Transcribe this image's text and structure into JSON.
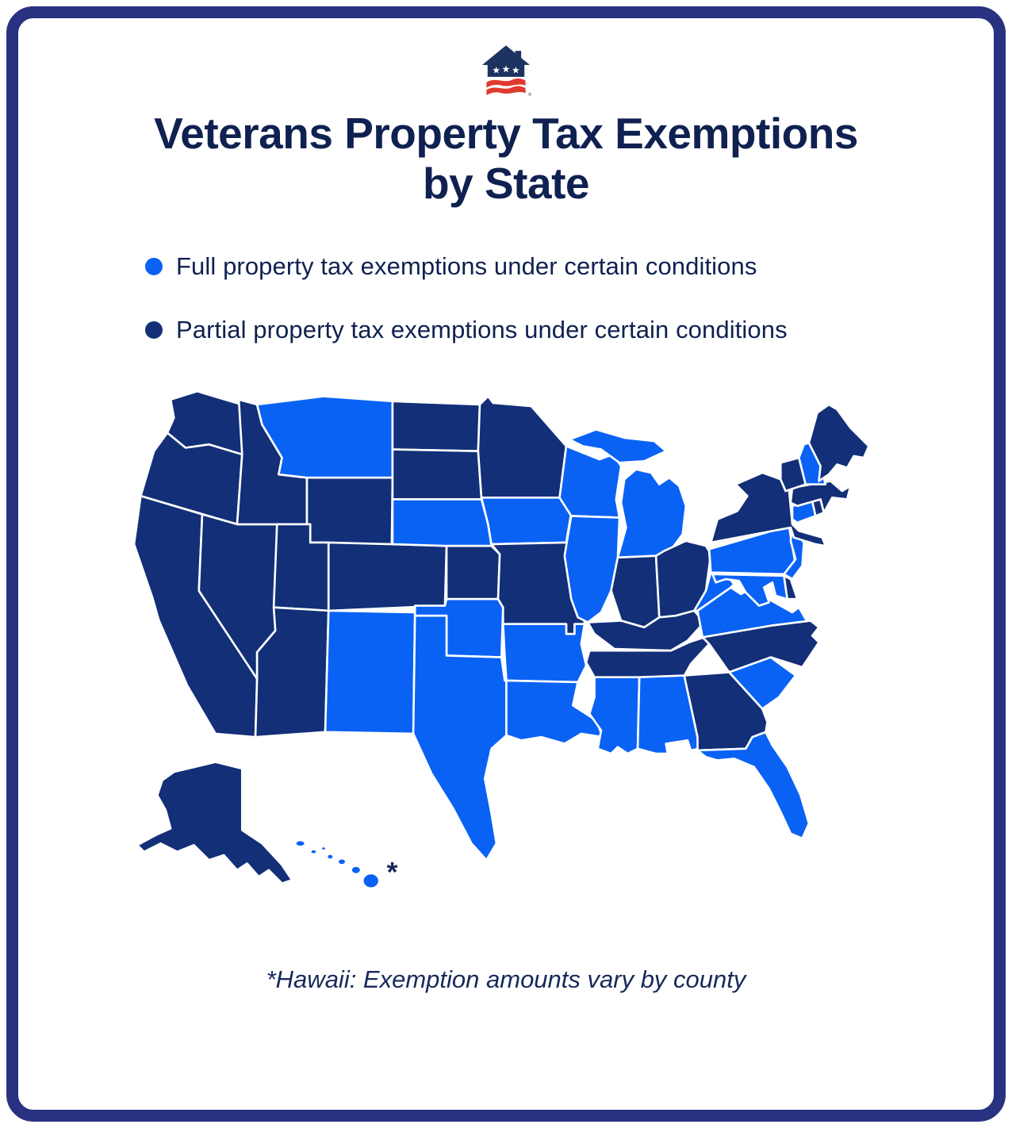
{
  "colors": {
    "card_border": "#283280",
    "title_text": "#0F2150",
    "footnote_text": "#16295B",
    "logo_navy": "#1D335F",
    "logo_red": "#E03A2F",
    "logo_star_white": "#FFFFFF"
  },
  "logo": {
    "name": "veterans-house-flag-logo",
    "trademark": "®"
  },
  "title": {
    "line1": "Veterans Property Tax Exemptions",
    "line2": "by State"
  },
  "legend": {
    "items": [
      {
        "key": "full",
        "label": "Full property tax exemptions under certain conditions",
        "color": "#0A62F5"
      },
      {
        "key": "partial",
        "label": "Partial property tax exemptions under certain conditions",
        "color": "#122F78"
      }
    ]
  },
  "map": {
    "hawaii_marker": "*",
    "states": [
      {
        "id": "WA",
        "name": "Washington",
        "exemption": "partial"
      },
      {
        "id": "OR",
        "name": "Oregon",
        "exemption": "partial"
      },
      {
        "id": "CA",
        "name": "California",
        "exemption": "partial"
      },
      {
        "id": "NV",
        "name": "Nevada",
        "exemption": "partial"
      },
      {
        "id": "ID",
        "name": "Idaho",
        "exemption": "partial"
      },
      {
        "id": "MT",
        "name": "Montana",
        "exemption": "full"
      },
      {
        "id": "WY",
        "name": "Wyoming",
        "exemption": "partial"
      },
      {
        "id": "UT",
        "name": "Utah",
        "exemption": "partial"
      },
      {
        "id": "CO",
        "name": "Colorado",
        "exemption": "partial"
      },
      {
        "id": "AZ",
        "name": "Arizona",
        "exemption": "partial"
      },
      {
        "id": "NM",
        "name": "New Mexico",
        "exemption": "full"
      },
      {
        "id": "ND",
        "name": "North Dakota",
        "exemption": "partial"
      },
      {
        "id": "SD",
        "name": "South Dakota",
        "exemption": "partial"
      },
      {
        "id": "NE",
        "name": "Nebraska",
        "exemption": "full"
      },
      {
        "id": "KS",
        "name": "Kansas",
        "exemption": "partial"
      },
      {
        "id": "OK",
        "name": "Oklahoma",
        "exemption": "full"
      },
      {
        "id": "TX",
        "name": "Texas",
        "exemption": "full"
      },
      {
        "id": "MN",
        "name": "Minnesota",
        "exemption": "partial"
      },
      {
        "id": "IA",
        "name": "Iowa",
        "exemption": "full"
      },
      {
        "id": "MO",
        "name": "Missouri",
        "exemption": "partial"
      },
      {
        "id": "AR",
        "name": "Arkansas",
        "exemption": "full"
      },
      {
        "id": "LA",
        "name": "Louisiana",
        "exemption": "full"
      },
      {
        "id": "WI",
        "name": "Wisconsin",
        "exemption": "full"
      },
      {
        "id": "IL",
        "name": "Illinois",
        "exemption": "full"
      },
      {
        "id": "MI",
        "name": "Michigan",
        "exemption": "full"
      },
      {
        "id": "IN",
        "name": "Indiana",
        "exemption": "partial"
      },
      {
        "id": "OH",
        "name": "Ohio",
        "exemption": "partial"
      },
      {
        "id": "KY",
        "name": "Kentucky",
        "exemption": "partial"
      },
      {
        "id": "TN",
        "name": "Tennessee",
        "exemption": "partial"
      },
      {
        "id": "MS",
        "name": "Mississippi",
        "exemption": "full"
      },
      {
        "id": "AL",
        "name": "Alabama",
        "exemption": "full"
      },
      {
        "id": "GA",
        "name": "Georgia",
        "exemption": "partial"
      },
      {
        "id": "SC",
        "name": "South Carolina",
        "exemption": "full"
      },
      {
        "id": "NC",
        "name": "North Carolina",
        "exemption": "partial"
      },
      {
        "id": "FL",
        "name": "Florida",
        "exemption": "full"
      },
      {
        "id": "VA",
        "name": "Virginia",
        "exemption": "full"
      },
      {
        "id": "WV",
        "name": "West Virginia",
        "exemption": "full"
      },
      {
        "id": "MD",
        "name": "Maryland",
        "exemption": "full"
      },
      {
        "id": "DE",
        "name": "Delaware",
        "exemption": "partial"
      },
      {
        "id": "PA",
        "name": "Pennsylvania",
        "exemption": "full"
      },
      {
        "id": "NJ",
        "name": "New Jersey",
        "exemption": "full"
      },
      {
        "id": "NY",
        "name": "New York",
        "exemption": "partial"
      },
      {
        "id": "CT",
        "name": "Connecticut",
        "exemption": "full"
      },
      {
        "id": "RI",
        "name": "Rhode Island",
        "exemption": "partial"
      },
      {
        "id": "MA",
        "name": "Massachusetts",
        "exemption": "partial"
      },
      {
        "id": "VT",
        "name": "Vermont",
        "exemption": "partial"
      },
      {
        "id": "NH",
        "name": "New Hampshire",
        "exemption": "full"
      },
      {
        "id": "ME",
        "name": "Maine",
        "exemption": "partial"
      },
      {
        "id": "AK",
        "name": "Alaska",
        "exemption": "partial"
      },
      {
        "id": "HI",
        "name": "Hawaii",
        "exemption": "full"
      }
    ]
  },
  "footnote": "*Hawaii: Exemption amounts vary by county"
}
